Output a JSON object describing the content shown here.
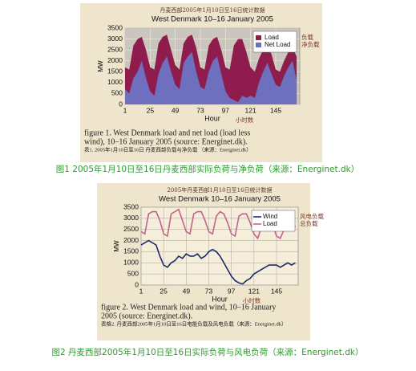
{
  "chart_data": [
    {
      "type": "area",
      "top_note": "丹麦西部2005年1月10日至16日统计数据",
      "title": "West Denmark 10–16 January 2005",
      "y_label": "MW",
      "x_label": "Hour",
      "x_label_note": "小时数",
      "x": [
        1,
        5,
        9,
        13,
        17,
        21,
        25,
        29,
        33,
        37,
        41,
        45,
        49,
        53,
        57,
        61,
        65,
        69,
        73,
        77,
        81,
        85,
        89,
        93,
        97,
        101,
        105,
        109,
        113,
        117,
        121,
        125,
        129,
        133,
        137,
        141,
        145,
        149,
        153,
        157,
        161,
        165
      ],
      "series": [
        {
          "name": "Load",
          "note": "负载",
          "color": "#8e1d4e",
          "values": [
            1700,
            1600,
            2700,
            3000,
            3100,
            2500,
            1700,
            1600,
            2800,
            3100,
            3200,
            2500,
            1800,
            1600,
            2800,
            3100,
            3200,
            2600,
            1700,
            1600,
            2700,
            3000,
            3100,
            2500,
            1700,
            1600,
            2700,
            3000,
            3000,
            2400,
            1700,
            1500,
            2100,
            2500,
            2700,
            2300,
            1600,
            1500,
            2000,
            2400,
            2600,
            2200
          ]
        },
        {
          "name": "Net Load",
          "note": "净负载",
          "color": "#6f6fbf",
          "values": [
            700,
            500,
            1200,
            1500,
            2000,
            1200,
            600,
            400,
            1400,
            1900,
            2200,
            1500,
            900,
            700,
            1900,
            2200,
            2400,
            1500,
            800,
            700,
            1500,
            2000,
            2200,
            1400,
            600,
            300,
            200,
            100,
            400,
            300,
            400,
            300,
            1000,
            1500,
            1900,
            1400,
            900,
            800,
            1300,
            1700,
            2000,
            1100
          ]
        }
      ],
      "xlim": [
        1,
        168
      ],
      "xticks": [
        1,
        25,
        49,
        73,
        97,
        121,
        145
      ],
      "ylim": [
        0,
        3500
      ],
      "yticks": [
        0,
        500,
        1000,
        1500,
        2000,
        2500,
        3000,
        3500
      ],
      "grid": true,
      "legend": "upper right",
      "caption_lines": [
        "figure 1. West Denmark load and net load (load less",
        "wind), 10–16 January 2005 (source: Energinet.dk).",
        "表1. 2005年1月10日至16日 丹麦西部负载与净负载 （来源：Energinet.dk）"
      ],
      "web_caption": "图1 2005年1月10日至16日丹麦西部实际负荷与净负荷（来源：Energinet.dk）"
    },
    {
      "type": "line",
      "top_note": "2005年丹麦西部1月10日至16日统计数据",
      "title": "West Denmark 10–16 January 2005",
      "y_label": "MW",
      "x_label": "Hour",
      "x_label_note": "小时数",
      "x": [
        1,
        5,
        9,
        13,
        17,
        21,
        25,
        29,
        33,
        37,
        41,
        45,
        49,
        53,
        57,
        61,
        65,
        69,
        73,
        77,
        81,
        85,
        89,
        93,
        97,
        101,
        105,
        109,
        113,
        117,
        121,
        125,
        129,
        133,
        137,
        141,
        145,
        149,
        153,
        157,
        161,
        165
      ],
      "series": [
        {
          "name": "Wind",
          "note": "风电负载",
          "color": "#1c2a6b",
          "values": [
            1800,
            1900,
            2000,
            1900,
            1800,
            1300,
            900,
            800,
            1000,
            1100,
            1300,
            1200,
            1400,
            1300,
            1300,
            1400,
            1200,
            1300,
            1500,
            1600,
            1500,
            1300,
            1000,
            700,
            400,
            200,
            100,
            50,
            200,
            300,
            500,
            600,
            700,
            800,
            900,
            900,
            900,
            800,
            900,
            1000,
            900,
            1000
          ]
        },
        {
          "name": "Load",
          "note": "总负载",
          "color": "#c3628e",
          "values": [
            2400,
            2300,
            3200,
            3300,
            3300,
            2900,
            2300,
            2200,
            3200,
            3300,
            3400,
            2900,
            2400,
            2300,
            3200,
            3300,
            3300,
            2900,
            2400,
            2300,
            3100,
            3300,
            3200,
            2800,
            2300,
            2200,
            3100,
            3200,
            3200,
            2800,
            2300,
            2100,
            2600,
            2900,
            3000,
            2700,
            2200,
            2100,
            2500,
            2800,
            2900,
            2600
          ]
        }
      ],
      "xlim": [
        1,
        168
      ],
      "xticks": [
        1,
        25,
        49,
        73,
        97,
        121,
        145
      ],
      "ylim": [
        0,
        3500
      ],
      "yticks": [
        0,
        500,
        1000,
        1500,
        2000,
        2500,
        3000,
        3500
      ],
      "grid": true,
      "legend": "upper right",
      "caption_lines": [
        "figure 2. West Denmark load and wind, 10–16 January",
        "2005 (source: Energinet.dk).",
        "表格2. 丹麦西部2005年1月10日至16日电能负载及风电负载（来源：Energinet.dk）"
      ],
      "web_caption": "图2 丹麦西部2005年1月10日至16日实际负荷与风电负荷（来源：Energinet.dk）"
    }
  ]
}
